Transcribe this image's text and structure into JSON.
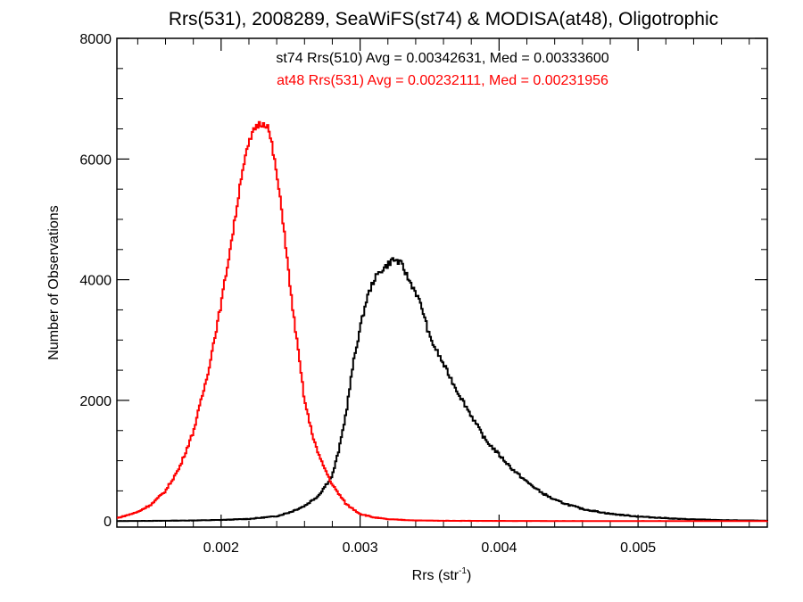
{
  "chart_data": {
    "type": "line",
    "title": "Rrs(531), 2008289, SeaWiFS(st74) & MODISA(at48), Oligotrophic",
    "xlabel": "Rrs (str",
    "xlabel_sup": "-1",
    "xlabel_end": ")",
    "ylabel": "Number of Observations",
    "xlim": [
      0.00125,
      0.00593
    ],
    "ylim": [
      -100,
      8000
    ],
    "xticks": [
      0.002,
      0.003,
      0.004,
      0.005
    ],
    "xtick_labels": [
      "0.002",
      "0.003",
      "0.004",
      "0.005"
    ],
    "yticks": [
      0,
      2000,
      4000,
      6000,
      8000
    ],
    "ytick_labels": [
      "0",
      "2000",
      "4000",
      "6000",
      "8000"
    ],
    "grid": false,
    "series": [
      {
        "name": "st74 Rrs(510) Avg = 0.00342631, Med = 0.00333600",
        "color": "#000000",
        "x": [
          0.00125,
          0.0014,
          0.0016,
          0.0018,
          0.002,
          0.0022,
          0.0024,
          0.0025,
          0.0026,
          0.0027,
          0.0028,
          0.00285,
          0.0029,
          0.00295,
          0.003,
          0.00305,
          0.0031,
          0.00315,
          0.0032,
          0.00323,
          0.00326,
          0.0033,
          0.00335,
          0.0034,
          0.00345,
          0.0035,
          0.0036,
          0.0037,
          0.0038,
          0.0039,
          0.004,
          0.0041,
          0.0042,
          0.0043,
          0.0044,
          0.0045,
          0.0046,
          0.0048,
          0.005,
          0.0053,
          0.0056,
          0.00593
        ],
        "y": [
          0,
          2,
          5,
          10,
          18,
          35,
          80,
          150,
          250,
          420,
          750,
          1200,
          1800,
          2600,
          3200,
          3700,
          4000,
          4150,
          4250,
          4330,
          4320,
          4250,
          4000,
          3800,
          3500,
          3050,
          2600,
          2150,
          1750,
          1350,
          1100,
          850,
          650,
          480,
          350,
          270,
          200,
          120,
          75,
          35,
          15,
          5
        ]
      },
      {
        "name": "at48 Rrs(531) Avg = 0.00232111, Med = 0.00231956",
        "color": "#ff0000",
        "x": [
          0.00125,
          0.0013,
          0.0014,
          0.0015,
          0.0016,
          0.0017,
          0.0018,
          0.0019,
          0.002,
          0.0021,
          0.00215,
          0.0022,
          0.00225,
          0.0023,
          0.00233,
          0.00236,
          0.0024,
          0.00245,
          0.0025,
          0.00255,
          0.0026,
          0.00265,
          0.0027,
          0.0028,
          0.0029,
          0.003,
          0.0031,
          0.0032,
          0.0034,
          0.0036,
          0.004,
          0.0045,
          0.005,
          0.00593
        ],
        "y": [
          50,
          80,
          150,
          280,
          500,
          880,
          1480,
          2400,
          3600,
          5000,
          5800,
          6250,
          6550,
          6600,
          6580,
          6300,
          5750,
          4900,
          3800,
          2900,
          2000,
          1500,
          1100,
          600,
          280,
          120,
          60,
          30,
          10,
          5,
          2,
          0,
          0,
          0
        ]
      }
    ],
    "legend": "top-center, as text lines in series colors"
  }
}
